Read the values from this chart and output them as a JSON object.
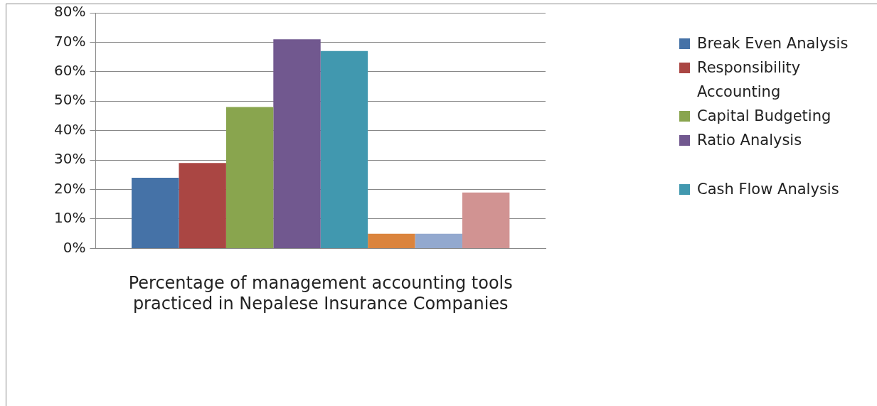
{
  "chart_data": {
    "type": "bar",
    "categories": [
      "Percentage of management accounting tools practiced in Nepalese Insurance Companies"
    ],
    "series": [
      {
        "name": "Break Even Analysis",
        "color": "#4572a7",
        "values": [
          24
        ]
      },
      {
        "name": "Responsibility Accounting",
        "color": "#aa4643",
        "values": [
          29
        ]
      },
      {
        "name": "Capital Budgeting",
        "color": "#89a54e",
        "values": [
          48
        ]
      },
      {
        "name": "Ratio Analysis",
        "color": "#71588f",
        "values": [
          71
        ]
      },
      {
        "name": "Cash Flow Analysis",
        "color": "#4198af",
        "values": [
          67
        ]
      },
      {
        "color": "#db843d",
        "values": [
          5
        ]
      },
      {
        "color": "#93a9cf",
        "values": [
          5
        ]
      },
      {
        "color": "#d19392",
        "values": [
          19
        ]
      }
    ],
    "ylim": [
      0,
      80
    ],
    "yticks": [
      {
        "value": 0,
        "label": "0%"
      },
      {
        "value": 10,
        "label": "10%"
      },
      {
        "value": 20,
        "label": "20%"
      },
      {
        "value": 30,
        "label": "30%"
      },
      {
        "value": 40,
        "label": "40%"
      },
      {
        "value": 50,
        "label": "50%"
      },
      {
        "value": 60,
        "label": "60%"
      },
      {
        "value": 70,
        "label": "70%"
      },
      {
        "value": 80,
        "label": "80%"
      }
    ],
    "grid": "y",
    "legend": "right"
  }
}
